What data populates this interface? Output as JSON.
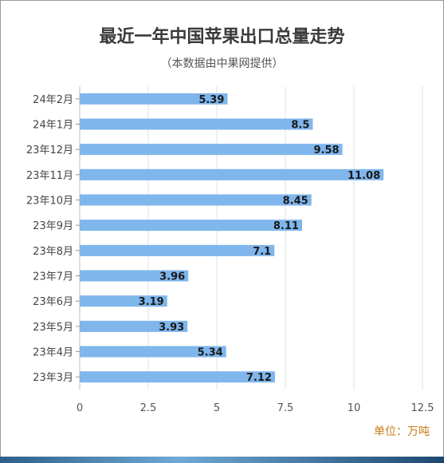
{
  "chart_data": {
    "type": "bar",
    "orientation": "horizontal",
    "title": "最近一年中国苹果出口总量走势",
    "subtitle": "（本数据由中果网提供）",
    "unit_note": "单位：万吨",
    "categories": [
      "24年2月",
      "24年1月",
      "23年12月",
      "23年11月",
      "23年10月",
      "23年9月",
      "23年8月",
      "23年7月",
      "23年6月",
      "23年5月",
      "23年4月",
      "23年3月"
    ],
    "values": [
      5.39,
      8.5,
      9.58,
      11.08,
      8.45,
      8.11,
      7.1,
      3.96,
      3.19,
      3.93,
      5.34,
      7.12
    ],
    "value_labels": [
      "5.39",
      "8.5",
      "9.58",
      "11.08",
      "8.45",
      "8.11",
      "7.1",
      "3.96",
      "3.19",
      "3.93",
      "5.34",
      "7.12"
    ],
    "xlim": [
      0,
      12.5
    ],
    "xticks": [
      "0",
      "2.5",
      "5",
      "7.5",
      "10",
      "12.5"
    ],
    "xtick_values": [
      0,
      2.5,
      5,
      7.5,
      10,
      12.5
    ],
    "grid": true,
    "bar_color": "#7fb6ec",
    "grid_color": "#dde3ea"
  }
}
